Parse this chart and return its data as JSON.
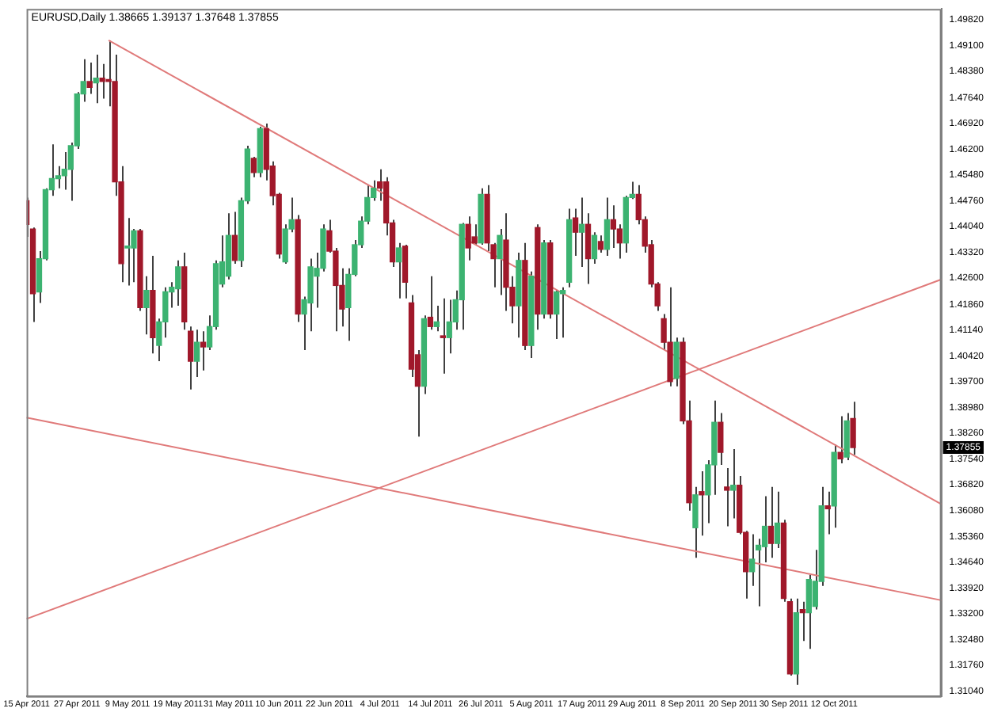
{
  "chart_data": {
    "type": "candlestick",
    "title": "EURUSD,Daily 1.38665 1.39137 1.37648 1.37855",
    "categories": [
      "15 Apr 2011",
      null,
      null,
      null,
      null,
      null,
      null,
      null,
      "27 Apr 2011",
      null,
      null,
      null,
      null,
      null,
      null,
      null,
      "9 May 2011",
      null,
      null,
      null,
      null,
      null,
      null,
      null,
      "19 May 2011",
      null,
      null,
      null,
      null,
      null,
      null,
      null,
      "31 May 2011",
      null,
      null,
      null,
      null,
      null,
      null,
      null,
      "10 Jun 2011",
      null,
      null,
      null,
      null,
      null,
      null,
      null,
      "22 Jun 2011",
      null,
      null,
      null,
      null,
      null,
      null,
      null,
      "4 Jul 2011",
      null,
      null,
      null,
      null,
      null,
      null,
      null,
      "14 Jul 2011",
      null,
      null,
      null,
      null,
      null,
      null,
      null,
      "26 Jul 2011",
      null,
      null,
      null,
      null,
      null,
      null,
      null,
      "5 Aug 2011",
      null,
      null,
      null,
      null,
      null,
      null,
      null,
      "17 Aug 2011",
      null,
      null,
      null,
      null,
      null,
      null,
      null,
      "29 Aug 2011",
      null,
      null,
      null,
      null,
      null,
      null,
      null,
      "8 Sep 2011",
      null,
      null,
      null,
      null,
      null,
      null,
      null,
      "20 Sep 2011",
      null,
      null,
      null,
      null,
      null,
      null,
      null,
      "30 Sep 2011",
      null,
      null,
      null,
      null,
      null,
      null,
      null,
      "12 Oct 2011",
      null,
      null,
      null,
      null,
      null,
      null,
      null,
      null,
      null,
      null,
      null,
      null,
      null,
      null,
      null,
      null,
      null
    ],
    "ohlc": [
      [
        1.4476,
        1.4485,
        1.4375,
        1.441
      ],
      [
        1.4397,
        1.4401,
        1.4137,
        1.4216
      ],
      [
        1.4221,
        1.4335,
        1.419,
        1.4314
      ],
      [
        1.4314,
        1.4511,
        1.4309,
        1.4507
      ],
      [
        1.4507,
        1.4634,
        1.449,
        1.4538
      ],
      [
        1.4538,
        1.4573,
        1.4511,
        1.4546
      ],
      [
        1.4546,
        1.4612,
        1.4507,
        1.4564
      ],
      [
        1.4564,
        1.4639,
        1.4476,
        1.463
      ],
      [
        1.463,
        1.478,
        1.4621,
        1.4775
      ],
      [
        1.4775,
        1.4872,
        1.4753,
        1.481
      ],
      [
        1.481,
        1.4863,
        1.4775,
        1.4793
      ],
      [
        1.4806,
        1.4885,
        1.4749,
        1.4819
      ],
      [
        1.4819,
        1.4859,
        1.4762,
        1.481
      ],
      [
        1.4815,
        1.4925,
        1.474,
        1.481
      ],
      [
        1.481,
        1.4885,
        1.449,
        1.4529
      ],
      [
        1.4529,
        1.4573,
        1.4248,
        1.43
      ],
      [
        1.4344,
        1.4428,
        1.4239,
        1.4349
      ],
      [
        1.4344,
        1.4397,
        1.4248,
        1.4392
      ],
      [
        1.4392,
        1.4397,
        1.4168,
        1.4177
      ],
      [
        1.4177,
        1.4265,
        1.4102,
        1.4225
      ],
      [
        1.4225,
        1.4322,
        1.4049,
        1.4093
      ],
      [
        1.4071,
        1.4146,
        1.4027,
        1.4137
      ],
      [
        1.4137,
        1.4234,
        1.4093,
        1.4221
      ],
      [
        1.4221,
        1.4248,
        1.4177,
        1.4234
      ],
      [
        1.423,
        1.4309,
        1.4182,
        1.4291
      ],
      [
        1.4291,
        1.4331,
        1.4115,
        1.4137
      ],
      [
        1.4111,
        1.4124,
        1.3948,
        1.4027
      ],
      [
        1.4027,
        1.4115,
        1.3983,
        1.408
      ],
      [
        1.408,
        1.4111,
        1.4001,
        1.4067
      ],
      [
        1.4067,
        1.4155,
        1.4058,
        1.4124
      ],
      [
        1.4124,
        1.4309,
        1.4115,
        1.43
      ],
      [
        1.4243,
        1.4379,
        1.4234,
        1.4305
      ],
      [
        1.4265,
        1.4441,
        1.4256,
        1.4379
      ],
      [
        1.4379,
        1.4445,
        1.43,
        1.4309
      ],
      [
        1.4309,
        1.4485,
        1.4291,
        1.4476
      ],
      [
        1.4476,
        1.463,
        1.4467,
        1.4621
      ],
      [
        1.4595,
        1.4599,
        1.4542,
        1.4555
      ],
      [
        1.4555,
        1.4683,
        1.4542,
        1.4678
      ],
      [
        1.4678,
        1.4692,
        1.4533,
        1.4564
      ],
      [
        1.4573,
        1.4586,
        1.4463,
        1.449
      ],
      [
        1.4494,
        1.4498,
        1.4314,
        1.4327
      ],
      [
        1.4305,
        1.441,
        1.43,
        1.4397
      ],
      [
        1.4397,
        1.4485,
        1.4388,
        1.4423
      ],
      [
        1.4423,
        1.4436,
        1.4137,
        1.4159
      ],
      [
        1.4159,
        1.4208,
        1.4058,
        1.4199
      ],
      [
        1.419,
        1.4314,
        1.4111,
        1.4291
      ],
      [
        1.4265,
        1.4331,
        1.4177,
        1.4287
      ],
      [
        1.4287,
        1.441,
        1.4278,
        1.4397
      ],
      [
        1.4392,
        1.4423,
        1.4331,
        1.4335
      ],
      [
        1.4335,
        1.4344,
        1.4111,
        1.4239
      ],
      [
        1.4239,
        1.4287,
        1.4124,
        1.4173
      ],
      [
        1.4177,
        1.4287,
        1.4084,
        1.427
      ],
      [
        1.427,
        1.4366,
        1.4265,
        1.4353
      ],
      [
        1.4353,
        1.4432,
        1.4344,
        1.4419
      ],
      [
        1.4419,
        1.452,
        1.441,
        1.4485
      ],
      [
        1.4485,
        1.4533,
        1.4476,
        1.4511
      ],
      [
        1.4529,
        1.4564,
        1.4476,
        1.4511
      ],
      [
        1.4529,
        1.4542,
        1.4379,
        1.4414
      ],
      [
        1.4414,
        1.4423,
        1.4291,
        1.4305
      ],
      [
        1.4305,
        1.4358,
        1.4203,
        1.4344
      ],
      [
        1.4349,
        1.4353,
        1.4203,
        1.4248
      ],
      [
        1.419,
        1.4212,
        1.3983,
        1.4005
      ],
      [
        1.4045,
        1.4058,
        1.3816,
        1.3957
      ],
      [
        1.3957,
        1.4155,
        1.3935,
        1.4146
      ],
      [
        1.415,
        1.4265,
        1.4115,
        1.4124
      ],
      [
        1.4124,
        1.4182,
        1.4111,
        1.4137
      ],
      [
        1.4098,
        1.4203,
        1.3992,
        1.4093
      ],
      [
        1.4093,
        1.4199,
        1.4049,
        1.4137
      ],
      [
        1.4137,
        1.4225,
        1.4115,
        1.4199
      ],
      [
        1.4199,
        1.4414,
        1.4115,
        1.441
      ],
      [
        1.441,
        1.4432,
        1.4309,
        1.4344
      ],
      [
        1.4375,
        1.441,
        1.4353,
        1.4358
      ],
      [
        1.4358,
        1.4511,
        1.4353,
        1.4494
      ],
      [
        1.4494,
        1.452,
        1.4335,
        1.4358
      ],
      [
        1.4353,
        1.4358,
        1.4234,
        1.4314
      ],
      [
        1.4314,
        1.4397,
        1.4212,
        1.4379
      ],
      [
        1.4366,
        1.4441,
        1.4168,
        1.4234
      ],
      [
        1.4234,
        1.4265,
        1.4133,
        1.4182
      ],
      [
        1.4182,
        1.4331,
        1.4093,
        1.4309
      ],
      [
        1.4309,
        1.4358,
        1.4058,
        1.4071
      ],
      [
        1.4071,
        1.4278,
        1.4036,
        1.4265
      ],
      [
        1.4401,
        1.441,
        1.4115,
        1.4159
      ],
      [
        1.4159,
        1.4366,
        1.4146,
        1.4358
      ],
      [
        1.4358,
        1.4366,
        1.4146,
        1.4159
      ],
      [
        1.4159,
        1.4225,
        1.4089,
        1.4221
      ],
      [
        1.4216,
        1.4234,
        1.4093,
        1.4225
      ],
      [
        1.4248,
        1.4454,
        1.4234,
        1.4423
      ],
      [
        1.4428,
        1.4454,
        1.4322,
        1.4388
      ],
      [
        1.4388,
        1.4485,
        1.4291,
        1.441
      ],
      [
        1.441,
        1.4441,
        1.4243,
        1.4314
      ],
      [
        1.4314,
        1.4388,
        1.43,
        1.4379
      ],
      [
        1.4362,
        1.4379,
        1.4331,
        1.434
      ],
      [
        1.434,
        1.4485,
        1.4322,
        1.4423
      ],
      [
        1.4423,
        1.4463,
        1.4344,
        1.4397
      ],
      [
        1.4397,
        1.441,
        1.4314,
        1.4358
      ],
      [
        1.4358,
        1.449,
        1.4331,
        1.4485
      ],
      [
        1.4485,
        1.4529,
        1.4481,
        1.4494
      ],
      [
        1.4494,
        1.452,
        1.441,
        1.4423
      ],
      [
        1.4423,
        1.4432,
        1.4331,
        1.4349
      ],
      [
        1.4353,
        1.4366,
        1.4234,
        1.4243
      ],
      [
        1.4243,
        1.4248,
        1.4168,
        1.4182
      ],
      [
        1.4146,
        1.4159,
        1.4058,
        1.408
      ],
      [
        1.408,
        1.4234,
        1.3957,
        1.397
      ],
      [
        1.3979,
        1.4093,
        1.3957,
        1.408
      ],
      [
        1.408,
        1.4093,
        1.3851,
        1.386
      ],
      [
        1.386,
        1.3917,
        1.3609,
        1.3631
      ],
      [
        1.3561,
        1.3675,
        1.3477,
        1.3653
      ],
      [
        1.3662,
        1.3719,
        1.3539,
        1.3653
      ],
      [
        1.3653,
        1.375,
        1.3574,
        1.3737
      ],
      [
        1.3737,
        1.3917,
        1.3653,
        1.3856
      ],
      [
        1.3856,
        1.3882,
        1.3737,
        1.3772
      ],
      [
        1.3675,
        1.3728,
        1.3565,
        1.3666
      ],
      [
        1.3666,
        1.3781,
        1.3587,
        1.368
      ],
      [
        1.368,
        1.3706,
        1.3543,
        1.3548
      ],
      [
        1.3548,
        1.3552,
        1.3363,
        1.3438
      ],
      [
        1.3438,
        1.3543,
        1.3398,
        1.3473
      ],
      [
        1.3499,
        1.353,
        1.3341,
        1.3512
      ],
      [
        1.3508,
        1.3649,
        1.3464,
        1.3565
      ],
      [
        1.3565,
        1.3675,
        1.3477,
        1.3517
      ],
      [
        1.3517,
        1.3662,
        1.3504,
        1.3574
      ],
      [
        1.3574,
        1.3583,
        1.3354,
        1.3363
      ],
      [
        1.3354,
        1.3363,
        1.3147,
        1.3152
      ],
      [
        1.3152,
        1.3363,
        1.3121,
        1.3323
      ],
      [
        1.3332,
        1.3354,
        1.3244,
        1.3323
      ],
      [
        1.3323,
        1.3429,
        1.3222,
        1.3416
      ],
      [
        1.3341,
        1.3499,
        1.3332,
        1.3411
      ],
      [
        1.3411,
        1.3675,
        1.3398,
        1.3622
      ],
      [
        1.3622,
        1.3662,
        1.3543,
        1.3614
      ],
      [
        1.3622,
        1.3794,
        1.3561,
        1.3772
      ],
      [
        1.3772,
        1.3873,
        1.3741,
        1.3754
      ],
      [
        1.3759,
        1.3882,
        1.375,
        1.386
      ],
      [
        1.38665,
        1.39137,
        1.37648,
        1.37855
      ],
      null,
      null,
      null,
      null,
      null,
      null,
      null,
      null,
      null,
      null,
      null,
      null,
      null,
      null
    ],
    "colors": [
      "#a0182a",
      "#a0182a",
      "#3cb371",
      "#3cb371",
      "#3cb371",
      "#3cb371",
      "#3cb371",
      "#3cb371",
      "#3cb371",
      "#3cb371",
      "#a0182a",
      "#3cb371",
      "#a0182a",
      "#a0182a",
      "#a0182a",
      "#a0182a",
      "#3cb371",
      "#3cb371",
      "#a0182a",
      "#3cb371",
      "#a0182a",
      "#3cb371",
      "#3cb371",
      "#3cb371",
      "#3cb371",
      "#a0182a",
      "#a0182a",
      "#3cb371",
      "#a0182a",
      "#3cb371",
      "#3cb371",
      "#3cb371",
      "#3cb371",
      "#a0182a",
      "#3cb371",
      "#3cb371",
      "#a0182a",
      "#3cb371",
      "#a0182a",
      "#a0182a",
      "#a0182a",
      "#3cb371",
      "#3cb371",
      "#a0182a",
      "#3cb371",
      "#3cb371",
      "#3cb371",
      "#3cb371",
      "#a0182a",
      "#a0182a",
      "#a0182a",
      "#3cb371",
      "#3cb371",
      "#3cb371",
      "#3cb371",
      "#3cb371",
      "#a0182a",
      "#a0182a",
      "#a0182a",
      "#3cb371",
      "#a0182a",
      "#a0182a",
      "#a0182a",
      "#3cb371",
      "#a0182a",
      "#3cb371",
      "#a0182a",
      "#3cb371",
      "#3cb371",
      "#3cb371",
      "#a0182a",
      "#a0182a",
      "#3cb371",
      "#a0182a",
      "#a0182a",
      "#3cb371",
      "#a0182a",
      "#a0182a",
      "#3cb371",
      "#a0182a",
      "#3cb371",
      "#a0182a",
      "#3cb371",
      "#a0182a",
      "#3cb371",
      "#3cb371",
      "#3cb371",
      "#a0182a",
      "#3cb371",
      "#a0182a",
      "#3cb371",
      "#a0182a",
      "#3cb371",
      "#a0182a",
      "#a0182a",
      "#3cb371",
      "#3cb371",
      "#a0182a",
      "#a0182a",
      "#a0182a",
      "#a0182a",
      "#a0182a",
      "#a0182a",
      "#3cb371",
      "#a0182a",
      "#a0182a",
      "#3cb371",
      "#a0182a",
      "#3cb371",
      "#3cb371",
      "#a0182a",
      "#a0182a",
      "#3cb371",
      "#a0182a",
      "#a0182a",
      "#3cb371",
      "#3cb371",
      "#3cb371",
      "#a0182a",
      "#3cb371",
      "#a0182a",
      "#a0182a",
      "#3cb371",
      "#a0182a",
      "#3cb371",
      "#3cb371",
      "#3cb371",
      "#a0182a",
      "#3cb371",
      "#a0182a",
      "#3cb371",
      "#a0182a",
      null,
      null,
      null,
      null,
      null,
      null,
      null,
      null,
      null,
      null,
      null,
      null,
      null,
      null
    ],
    "series": [
      {
        "type": "line",
        "color": "#e07a7a",
        "values": [
          null,
          null,
          null,
          null,
          null,
          null,
          null,
          null,
          null,
          null,
          null,
          null,
          null,
          1.4925,
          null,
          null,
          null,
          null,
          null,
          null,
          null,
          null,
          null,
          null,
          null,
          null,
          null,
          null,
          null,
          null,
          null,
          null,
          null,
          null,
          null,
          null,
          null,
          null,
          null,
          null,
          null,
          null,
          null,
          null,
          null,
          null,
          null,
          null,
          null,
          null,
          null,
          null,
          null,
          null,
          null,
          null,
          null,
          null,
          null,
          null,
          null,
          null,
          null,
          null,
          null,
          null,
          null,
          null,
          null,
          null,
          null,
          null,
          null,
          null,
          null,
          null,
          null,
          null,
          null,
          null,
          null,
          null,
          null,
          null,
          null,
          null,
          null,
          null,
          null,
          null,
          null,
          null,
          null,
          null,
          null,
          null,
          null,
          null,
          null,
          null,
          null,
          null,
          null,
          null,
          null,
          null,
          null,
          null,
          null,
          null,
          null,
          null,
          null,
          null,
          null,
          null,
          null,
          null,
          null,
          null,
          null,
          null,
          null,
          null,
          null,
          null,
          null,
          null,
          null,
          null,
          null,
          null,
          null,
          null,
          null,
          null,
          null,
          null,
          null,
          null,
          null,
          null,
          null,
          null,
          null,
          1.3627
        ]
      },
      {
        "type": "line",
        "color": "#e07a7a",
        "values": [
          1.3306,
          null,
          null,
          null,
          null,
          null,
          null,
          null,
          null,
          null,
          null,
          null,
          null,
          null,
          null,
          null,
          null,
          null,
          null,
          null,
          null,
          null,
          null,
          null,
          null,
          null,
          null,
          null,
          null,
          null,
          null,
          null,
          null,
          null,
          null,
          null,
          null,
          null,
          null,
          null,
          null,
          null,
          null,
          null,
          null,
          null,
          null,
          null,
          null,
          null,
          null,
          null,
          null,
          null,
          null,
          null,
          null,
          null,
          null,
          null,
          null,
          null,
          null,
          null,
          null,
          null,
          null,
          null,
          null,
          null,
          null,
          null,
          null,
          null,
          null,
          null,
          null,
          null,
          null,
          null,
          null,
          null,
          null,
          null,
          null,
          null,
          null,
          null,
          null,
          null,
          null,
          null,
          null,
          null,
          null,
          null,
          null,
          null,
          null,
          null,
          null,
          null,
          null,
          null,
          null,
          null,
          null,
          null,
          null,
          null,
          null,
          null,
          null,
          null,
          null,
          null,
          null,
          null,
          null,
          null,
          null,
          null,
          null,
          null,
          null,
          null,
          null,
          null,
          null,
          null,
          null,
          null,
          null,
          null,
          null,
          null,
          null,
          null,
          null,
          null,
          null,
          null,
          null,
          null,
          null,
          1.4256
        ]
      },
      {
        "type": "line",
        "color": "#e07a7a",
        "values": [
          1.3869,
          null,
          null,
          null,
          null,
          null,
          null,
          null,
          null,
          null,
          null,
          null,
          null,
          null,
          null,
          null,
          null,
          null,
          null,
          null,
          null,
          null,
          null,
          null,
          null,
          null,
          null,
          null,
          null,
          null,
          null,
          null,
          null,
          null,
          null,
          null,
          null,
          null,
          null,
          null,
          null,
          null,
          null,
          null,
          null,
          null,
          null,
          null,
          null,
          null,
          null,
          null,
          null,
          null,
          null,
          null,
          null,
          null,
          null,
          null,
          null,
          null,
          null,
          null,
          null,
          null,
          null,
          null,
          null,
          null,
          null,
          null,
          null,
          null,
          null,
          null,
          null,
          null,
          null,
          null,
          null,
          null,
          null,
          null,
          null,
          null,
          null,
          null,
          null,
          null,
          null,
          null,
          null,
          null,
          null,
          null,
          null,
          null,
          null,
          null,
          null,
          null,
          null,
          null,
          null,
          null,
          null,
          null,
          null,
          null,
          null,
          null,
          null,
          null,
          null,
          null,
          null,
          null,
          null,
          null,
          null,
          null,
          null,
          null,
          null,
          null,
          null,
          null,
          null,
          null,
          null,
          null,
          null,
          null,
          null,
          null,
          null,
          null,
          null,
          null,
          null,
          null,
          null,
          null,
          null,
          1.3358
        ]
      }
    ],
    "ylim": [
      1.309,
      1.5013
    ],
    "yticks": [
      {
        "value": 1.4982,
        "label": "1.49820"
      },
      {
        "value": 1.491,
        "label": "1.49100"
      },
      {
        "value": 1.4838,
        "label": "1.48380"
      },
      {
        "value": 1.4764,
        "label": "1.47640"
      },
      {
        "value": 1.4692,
        "label": "1.46920"
      },
      {
        "value": 1.462,
        "label": "1.46200"
      },
      {
        "value": 1.4548,
        "label": "1.45480"
      },
      {
        "value": 1.4476,
        "label": "1.44760"
      },
      {
        "value": 1.4404,
        "label": "1.44040"
      },
      {
        "value": 1.4332,
        "label": "1.43320"
      },
      {
        "value": 1.426,
        "label": "1.42600"
      },
      {
        "value": 1.4186,
        "label": "1.41860"
      },
      {
        "value": 1.4114,
        "label": "1.41140"
      },
      {
        "value": 1.4042,
        "label": "1.40420"
      },
      {
        "value": 1.397,
        "label": "1.39700"
      },
      {
        "value": 1.3898,
        "label": "1.38980"
      },
      {
        "value": 1.3826,
        "label": "1.38260"
      },
      {
        "value": 1.3754,
        "label": "1.37540"
      },
      {
        "value": 1.3682,
        "label": "1.36820"
      },
      {
        "value": 1.3608,
        "label": "1.36080"
      },
      {
        "value": 1.3536,
        "label": "1.35360"
      },
      {
        "value": 1.3464,
        "label": "1.34640"
      },
      {
        "value": 1.3392,
        "label": "1.33920"
      },
      {
        "value": 1.332,
        "label": "1.33200"
      },
      {
        "value": 1.3248,
        "label": "1.32480"
      },
      {
        "value": 1.3176,
        "label": "1.31760"
      },
      {
        "value": 1.3104,
        "label": "1.31040"
      }
    ],
    "annotations": [
      {
        "text": "1.37855",
        "y": 1.37855
      }
    ],
    "grid": false,
    "legend": false
  }
}
